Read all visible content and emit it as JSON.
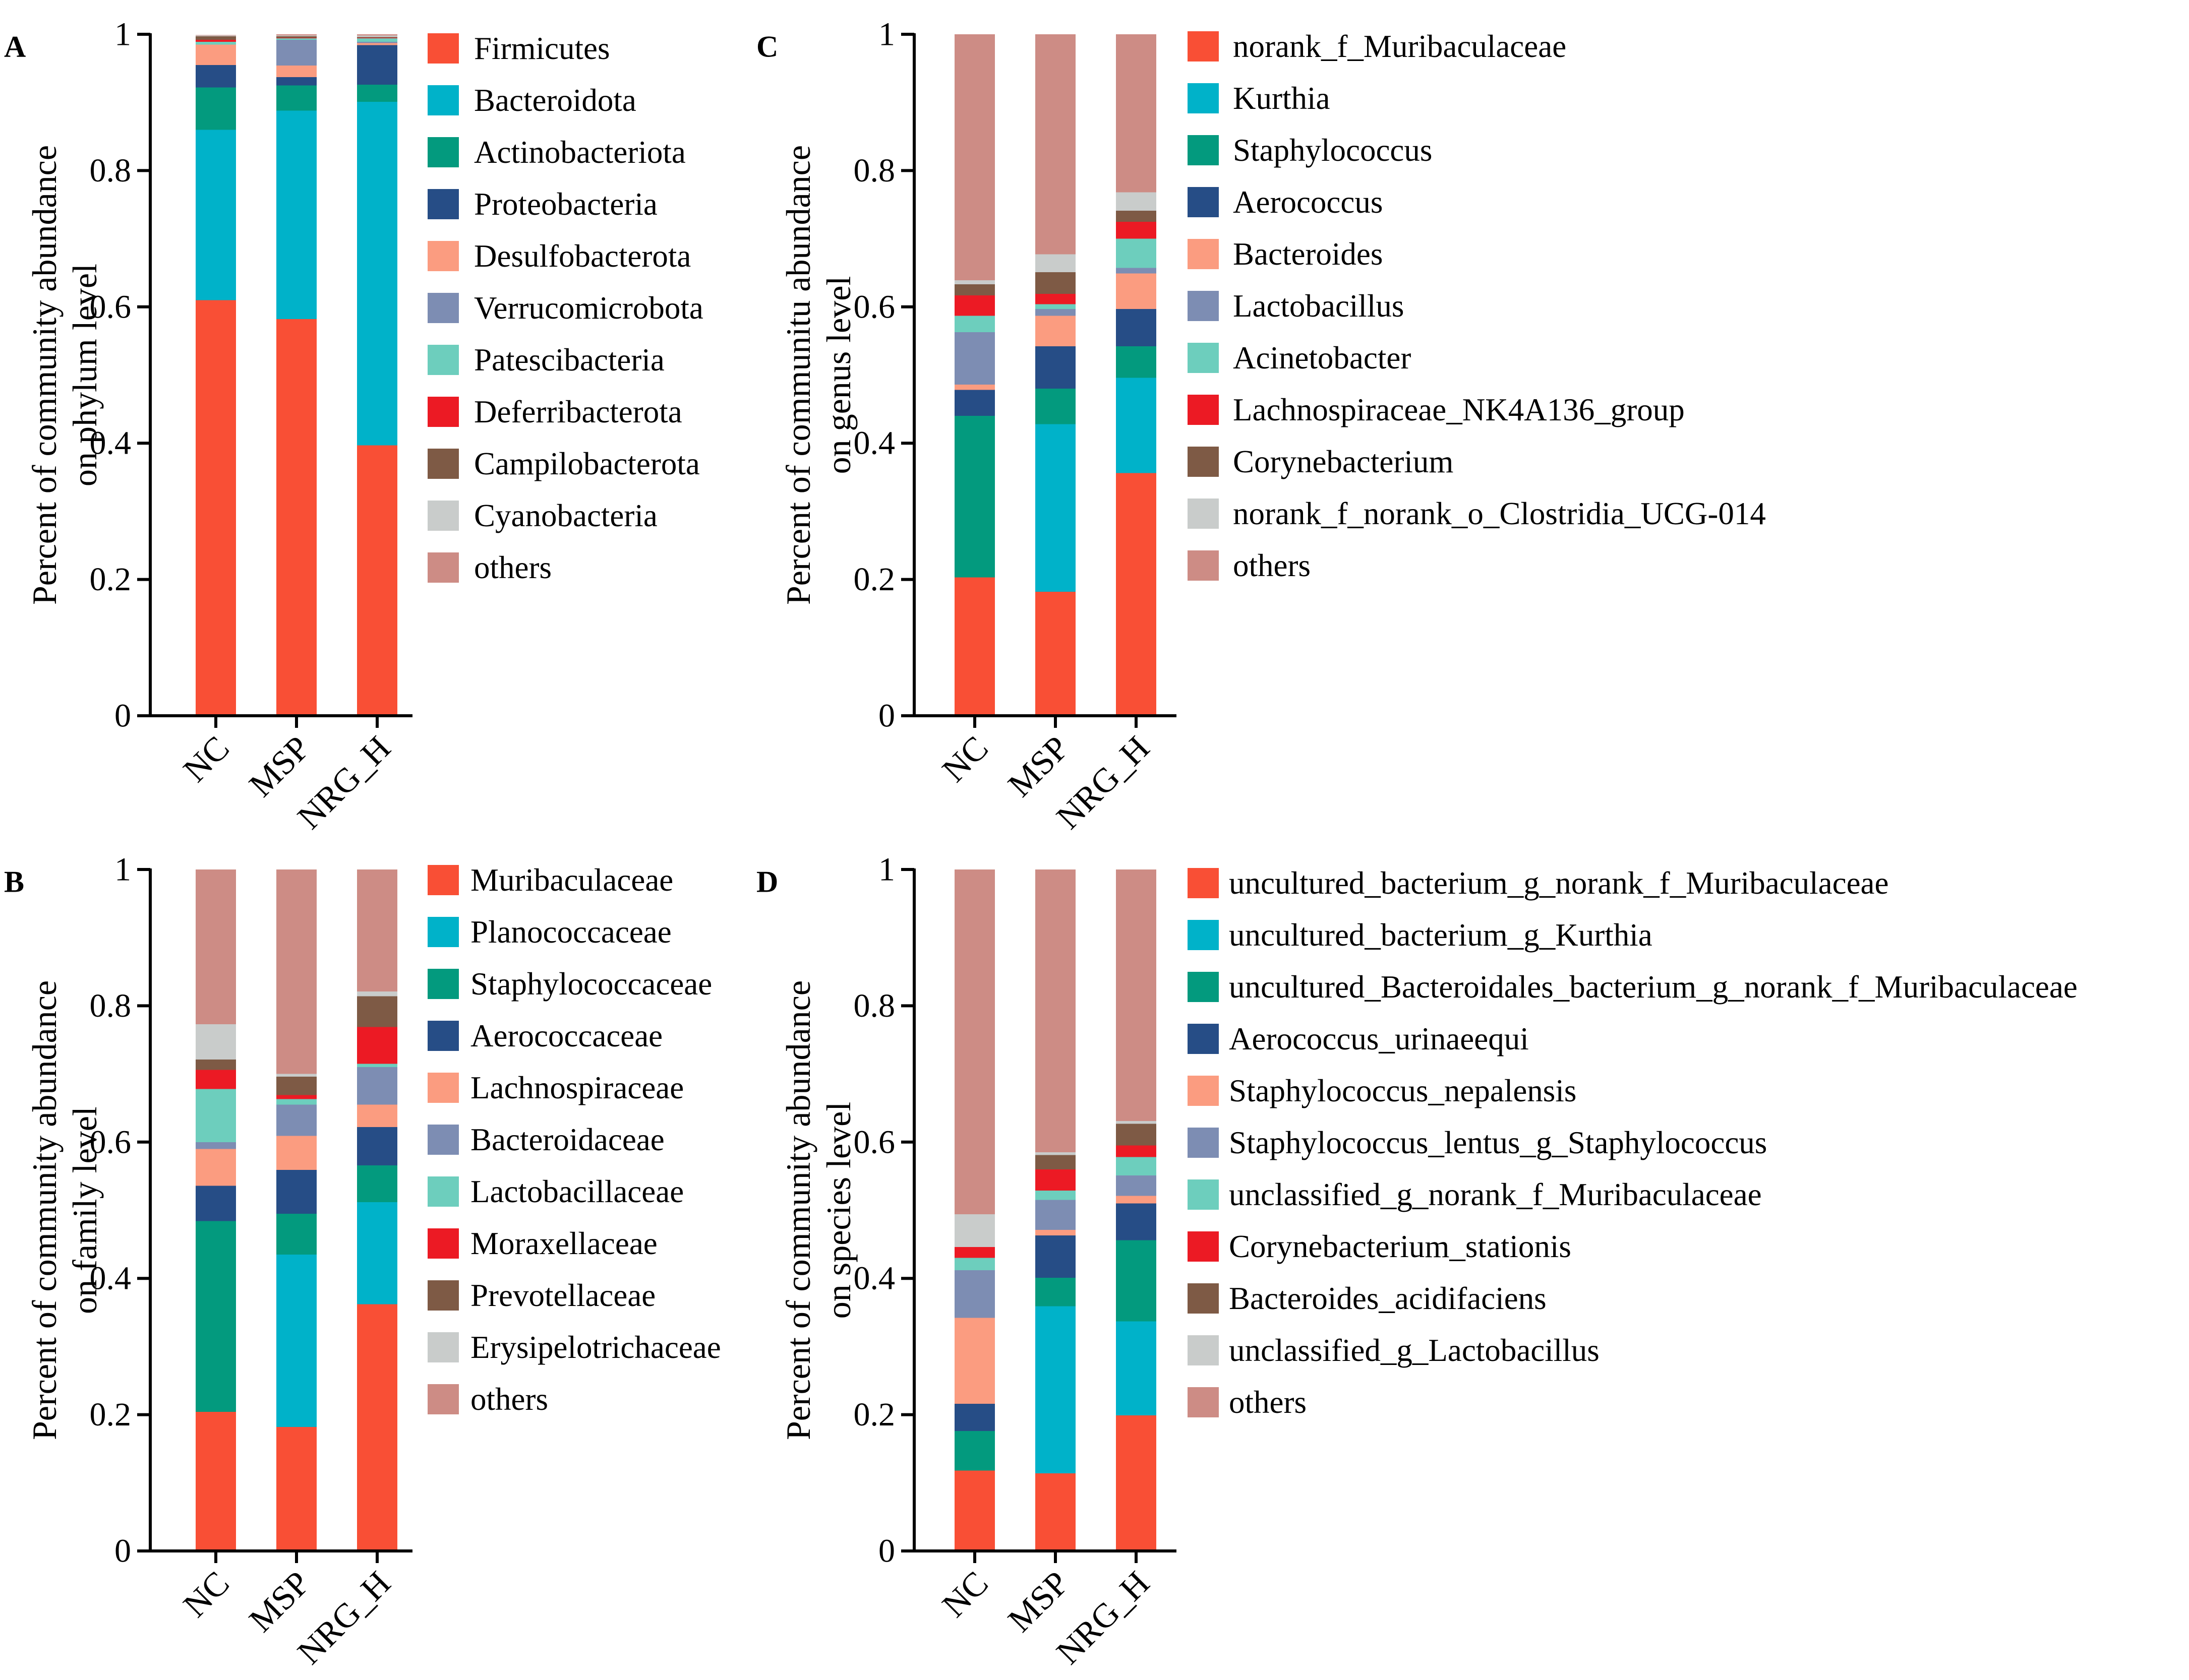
{
  "figure": {
    "colors": [
      "#f94f35",
      "#00b2c9",
      "#039a7e",
      "#264d86",
      "#fb9c80",
      "#7d8db3",
      "#6dcebd",
      "#ec1a24",
      "#7e5a45",
      "#c9cccb",
      "#cd8c85"
    ],
    "panels": [
      {
        "panel_label": "A",
        "ylabel": [
          "Percent of community abundance",
          "on phylum level"
        ],
        "legend": [
          "Firmicutes",
          "Bacteroidota",
          "Actinobacteriota",
          "Proteobacteria",
          "Desulfobacterota",
          "Verrucomicrobota",
          "Patescibacteria",
          "Deferribacterota",
          "Campilobacterota",
          "Cyanobacteria",
          "others"
        ]
      },
      {
        "panel_label": "B",
        "ylabel": [
          "Percent of community abundance",
          "on family level"
        ],
        "legend": [
          "Muribaculaceae",
          "Planococcaceae",
          "Staphylococcaceae",
          "Aerococcaceae",
          "Lachnospiraceae",
          "Bacteroidaceae",
          "Lactobacillaceae",
          "Moraxellaceae",
          "Prevotellaceae",
          "Erysipelotrichaceae",
          "others"
        ]
      },
      {
        "panel_label": "C",
        "ylabel": [
          "Percent of communitu abundance",
          "on genus level"
        ],
        "legend": [
          "norank_f_Muribaculaceae",
          "Kurthia",
          "Staphylococcus",
          "Aerococcus",
          "Bacteroides",
          "Lactobacillus",
          "Acinetobacter",
          "Lachnospiraceae_NK4A136_group",
          "Corynebacterium",
          "norank_f_norank_o_Clostridia_UCG-014",
          "others"
        ]
      },
      {
        "panel_label": "D",
        "ylabel": [
          "Percent of community abundance",
          "on species level"
        ],
        "legend": [
          "uncultured_bacterium_g_norank_f_Muribaculaceae",
          "uncultured_bacterium_g_Kurthia",
          "uncultured_Bacteroidales_bacterium_g_norank_f_Muribaculaceae",
          "Aerococcus_urinaeequi",
          "Staphylococcus_nepalensis",
          "Staphylococcus_lentus_g_Staphylococcus",
          "unclassified_g_norank_f_Muribaculaceae",
          "Corynebacterium_stationis",
          "Bacteroides_acidifaciens",
          "unclassified_g_Lactobacillus",
          "others"
        ]
      }
    ]
  },
  "chart_data": [
    {
      "type": "bar",
      "stacked": true,
      "panel": "A",
      "categories": [
        "NC",
        "MSP",
        "NRG_H"
      ],
      "ylim": [
        0,
        1
      ],
      "yticks": [
        "0",
        "0.2",
        "0.4",
        "0.6",
        "0.8",
        "1"
      ],
      "series": [
        {
          "name": "Firmicutes",
          "values": [
            0.61,
            0.582,
            0.397
          ]
        },
        {
          "name": "Bacteroidota",
          "values": [
            0.25,
            0.306,
            0.504
          ]
        },
        {
          "name": "Actinobacteriota",
          "values": [
            0.062,
            0.037,
            0.025
          ]
        },
        {
          "name": "Proteobacteria",
          "values": [
            0.033,
            0.012,
            0.058
          ]
        },
        {
          "name": "Desulfobacterota",
          "values": [
            0.03,
            0.017,
            0.003
          ]
        },
        {
          "name": "Verrucomicrobota",
          "values": [
            0.0,
            0.038,
            0.002
          ]
        },
        {
          "name": "Patescibacteria",
          "values": [
            0.004,
            0.002,
            0.005
          ]
        },
        {
          "name": "Deferribacterota",
          "values": [
            0.003,
            0.001,
            0.001
          ]
        },
        {
          "name": "Campilobacterota",
          "values": [
            0.005,
            0.002,
            0.001
          ]
        },
        {
          "name": "Cyanobacteria",
          "values": [
            0.001,
            0.001,
            0.002
          ]
        },
        {
          "name": "others",
          "values": [
            0.001,
            0.002,
            0.002
          ]
        }
      ]
    },
    {
      "type": "bar",
      "stacked": true,
      "panel": "B",
      "categories": [
        "NC",
        "MSP",
        "NRG_H"
      ],
      "ylim": [
        0,
        1
      ],
      "yticks": [
        "0",
        "0.2",
        "0.4",
        "0.6",
        "0.8",
        "1"
      ],
      "series": [
        {
          "name": "Muribaculaceae",
          "values": [
            0.204,
            0.182,
            0.362
          ]
        },
        {
          "name": "Planococcaceae",
          "values": [
            0.0,
            0.253,
            0.15
          ]
        },
        {
          "name": "Staphylococcaceae",
          "values": [
            0.28,
            0.06,
            0.054
          ]
        },
        {
          "name": "Aerococcaceae",
          "values": [
            0.052,
            0.064,
            0.056
          ]
        },
        {
          "name": "Lachnospiraceae",
          "values": [
            0.054,
            0.05,
            0.033
          ]
        },
        {
          "name": "Bacteroidaceae",
          "values": [
            0.01,
            0.046,
            0.055
          ]
        },
        {
          "name": "Lactobacillaceae",
          "values": [
            0.078,
            0.008,
            0.005
          ]
        },
        {
          "name": "Moraxellaceae",
          "values": [
            0.028,
            0.006,
            0.054
          ]
        },
        {
          "name": "Prevotellaceae",
          "values": [
            0.015,
            0.027,
            0.045
          ]
        },
        {
          "name": "Erysipelotrichaceae",
          "values": [
            0.052,
            0.004,
            0.007
          ]
        },
        {
          "name": "others",
          "values": [
            0.227,
            0.3,
            0.179
          ]
        }
      ]
    },
    {
      "type": "bar",
      "stacked": true,
      "panel": "C",
      "categories": [
        "NC",
        "MSP",
        "NRG_H"
      ],
      "ylim": [
        0,
        1
      ],
      "yticks": [
        "0",
        "0.2",
        "0.4",
        "0.6",
        "0.8",
        "1"
      ],
      "series": [
        {
          "name": "norank_f_Muribaculaceae",
          "values": [
            0.203,
            0.182,
            0.356
          ]
        },
        {
          "name": "Kurthia",
          "values": [
            0.0,
            0.246,
            0.14
          ]
        },
        {
          "name": "Staphylococcus",
          "values": [
            0.237,
            0.052,
            0.046
          ]
        },
        {
          "name": "Aerococcus",
          "values": [
            0.038,
            0.062,
            0.055
          ]
        },
        {
          "name": "Bacteroides",
          "values": [
            0.008,
            0.045,
            0.052
          ]
        },
        {
          "name": "Lactobacillus",
          "values": [
            0.077,
            0.01,
            0.008
          ]
        },
        {
          "name": "Acinetobacter",
          "values": [
            0.024,
            0.007,
            0.043
          ]
        },
        {
          "name": "Lachnospiraceae_NK4A136_group",
          "values": [
            0.03,
            0.015,
            0.025
          ]
        },
        {
          "name": "Corynebacterium",
          "values": [
            0.016,
            0.032,
            0.016
          ]
        },
        {
          "name": "norank_f_norank_o_Clostridia_UCG-014",
          "values": [
            0.006,
            0.026,
            0.027
          ]
        },
        {
          "name": "others",
          "values": [
            0.361,
            0.323,
            0.232
          ]
        }
      ]
    },
    {
      "type": "bar",
      "stacked": true,
      "panel": "D",
      "categories": [
        "NC",
        "MSP",
        "NRG_H"
      ],
      "ylim": [
        0,
        1
      ],
      "yticks": [
        "0",
        "0.2",
        "0.4",
        "0.6",
        "0.8",
        "1"
      ],
      "series": [
        {
          "name": "uncultured_bacterium_g_norank_f_Muribaculaceae",
          "values": [
            0.118,
            0.114,
            0.199
          ]
        },
        {
          "name": "uncultured_bacterium_g_Kurthia",
          "values": [
            0.0,
            0.245,
            0.138
          ]
        },
        {
          "name": "uncultured_Bacteroidales_bacterium_g_norank_f_Muribaculaceae",
          "values": [
            0.058,
            0.042,
            0.119
          ]
        },
        {
          "name": "Aerococcus_urinaeequi",
          "values": [
            0.04,
            0.062,
            0.054
          ]
        },
        {
          "name": "Staphylococcus_nepalensis",
          "values": [
            0.126,
            0.008,
            0.011
          ]
        },
        {
          "name": "Staphylococcus_lentus_g_Staphylococcus",
          "values": [
            0.07,
            0.044,
            0.03
          ]
        },
        {
          "name": "unclassified_g_norank_f_Muribaculaceae",
          "values": [
            0.018,
            0.014,
            0.027
          ]
        },
        {
          "name": "Corynebacterium_stationis",
          "values": [
            0.016,
            0.031,
            0.017
          ]
        },
        {
          "name": "Bacteroides_acidifaciens",
          "values": [
            0.0,
            0.021,
            0.032
          ]
        },
        {
          "name": "unclassified_g_Lactobacillus",
          "values": [
            0.048,
            0.004,
            0.004
          ]
        },
        {
          "name": "others",
          "values": [
            0.506,
            0.415,
            0.369
          ]
        }
      ]
    }
  ]
}
